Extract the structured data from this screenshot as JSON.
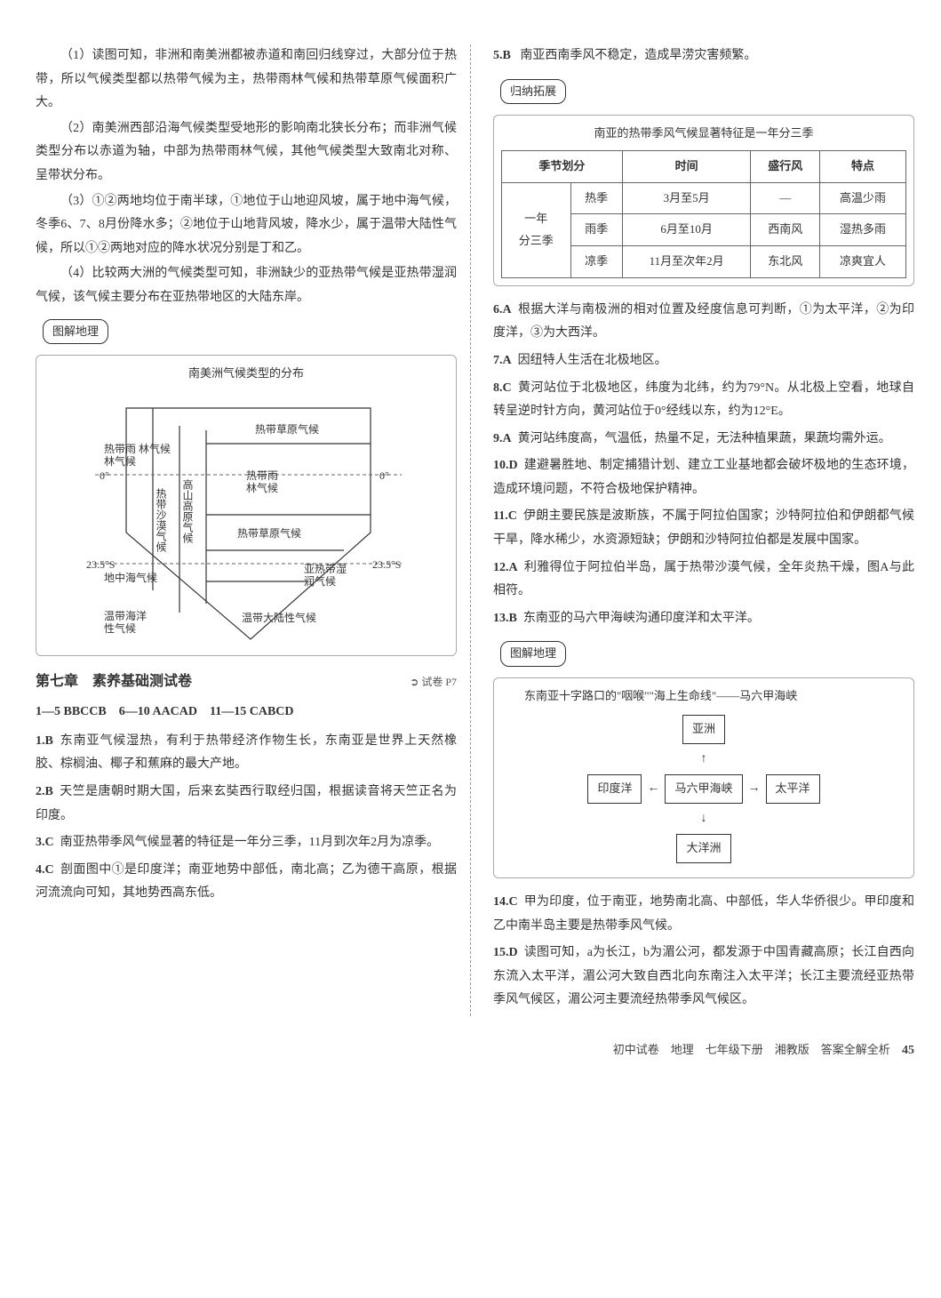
{
  "left": {
    "p1": "（1）读图可知，非洲和南美洲都被赤道和南回归线穿过，大部分位于热带，所以气候类型都以热带气候为主，热带雨林气候和热带草原气候面积广大。",
    "p2": "（2）南美洲西部沿海气候类型受地形的影响南北狭长分布；而非洲气候类型分布以赤道为轴，中部为热带雨林气候，其他气候类型大致南北对称、呈带状分布。",
    "p3": "（3）①②两地均位于南半球，①地位于山地迎风坡，属于地中海气候，冬季6、7、8月份降水多；②地位于山地背风坡，降水少，属于温带大陆性气候，所以①②两地对应的降水状况分别是丁和乙。",
    "p4": "（4）比较两大洲的气候类型可知，非洲缺少的亚热带气候是亚热带湿润气候，该气候主要分布在亚热带地区的大陆东岸。",
    "diag": {
      "label": "图解地理",
      "title": "南美洲气候类型的分布",
      "labels": {
        "rainforest1": "热带雨\n林气候",
        "savanna1": "热带草原气候",
        "desert": "热带沙漠气候",
        "alpine": "高山高原气候",
        "rainforest2": "热带雨\n林气候",
        "savanna2": "热带草原气候",
        "subhumid": "亚热带湿\n润气候",
        "med": "地中海气候",
        "marine": "温带海洋\n性气候",
        "cont": "温带大陆性气候",
        "eq_l": "0°",
        "eq_r": "0°",
        "trop_l": "23.5°S",
        "trop_r": "23.5°S"
      },
      "colors": {
        "stroke": "#333333",
        "dash": "#666666"
      }
    },
    "chapter": {
      "title": "第七章　素养基础测试卷",
      "ref": "试卷 P7"
    },
    "answers": "1—5 BBCCB　6—10 AACAD　11—15 CABCD",
    "q": [
      {
        "n": "1",
        "a": "B",
        "t": "东南亚气候湿热，有利于热带经济作物生长，东南亚是世界上天然橡胶、棕榈油、椰子和蕉麻的最大产地。"
      },
      {
        "n": "2",
        "a": "B",
        "t": "天竺是唐朝时期大国，后来玄奘西行取经归国，根据读音将天竺正名为印度。"
      },
      {
        "n": "3",
        "a": "C",
        "t": "南亚热带季风气候显著的特征是一年分三季，11月到次年2月为凉季。"
      },
      {
        "n": "4",
        "a": "C",
        "t": "剖面图中①是印度洋；南亚地势中部低，南北高；乙为德干高原，根据河流流向可知，其地势西高东低。"
      }
    ]
  },
  "right": {
    "q5": {
      "n": "5",
      "a": "B",
      "t": "南亚西南季风不稳定，造成旱涝灾害频繁。"
    },
    "box1": {
      "label": "归纳拓展",
      "title": "南亚的热带季风气候显著特征是一年分三季",
      "headers": [
        "季节划分",
        "时间",
        "盛行风",
        "特点"
      ],
      "rowgroup": "一年\n分三季",
      "rows": [
        [
          "热季",
          "3月至5月",
          "—",
          "高温少雨"
        ],
        [
          "雨季",
          "6月至10月",
          "西南风",
          "湿热多雨"
        ],
        [
          "凉季",
          "11月至次年2月",
          "东北风",
          "凉爽宜人"
        ]
      ]
    },
    "q": [
      {
        "n": "6",
        "a": "A",
        "t": "根据大洋与南极洲的相对位置及经度信息可判断，①为太平洋，②为印度洋，③为大西洋。"
      },
      {
        "n": "7",
        "a": "A",
        "t": "因纽特人生活在北极地区。"
      },
      {
        "n": "8",
        "a": "C",
        "t": "黄河站位于北极地区，纬度为北纬，约为79°N。从北极上空看，地球自转呈逆时针方向，黄河站位于0°经线以东，约为12°E。"
      },
      {
        "n": "9",
        "a": "A",
        "t": "黄河站纬度高，气温低，热量不足，无法种植果蔬，果蔬均需外运。"
      },
      {
        "n": "10",
        "a": "D",
        "t": "建避暑胜地、制定捕猎计划、建立工业基地都会破坏极地的生态环境，造成环境问题，不符合极地保护精神。"
      },
      {
        "n": "11",
        "a": "C",
        "t": "伊朗主要民族是波斯族，不属于阿拉伯国家；沙特阿拉伯和伊朗都气候干旱，降水稀少，水资源短缺；伊朗和沙特阿拉伯都是发展中国家。"
      },
      {
        "n": "12",
        "a": "A",
        "t": "利雅得位于阿拉伯半岛，属于热带沙漠气候，全年炎热干燥，图A与此相符。"
      },
      {
        "n": "13",
        "a": "B",
        "t": "东南亚的马六甲海峡沟通印度洋和太平洋。"
      }
    ],
    "diag2": {
      "label": "图解地理",
      "title": "东南亚十字路口的\"咽喉\"\"海上生命线\"——马六甲海峡",
      "nodes": {
        "top": "亚洲",
        "left": "印度洋",
        "center": "马六甲海峡",
        "right": "太平洋",
        "bottom": "大洋洲"
      }
    },
    "q2": [
      {
        "n": "14",
        "a": "C",
        "t": "甲为印度，位于南亚，地势南北高、中部低，华人华侨很少。甲印度和乙中南半岛主要是热带季风气候。"
      },
      {
        "n": "15",
        "a": "D",
        "t": "读图可知，a为长江，b为湄公河，都发源于中国青藏高原；长江自西向东流入太平洋，湄公河大致自西北向东南注入太平洋；长江主要流经亚热带季风气候区，湄公河主要流经热带季风气候区。"
      }
    ]
  },
  "footer": {
    "text": "初中试卷　地理　七年级下册　湘教版　答案全解全析",
    "page": "45"
  }
}
